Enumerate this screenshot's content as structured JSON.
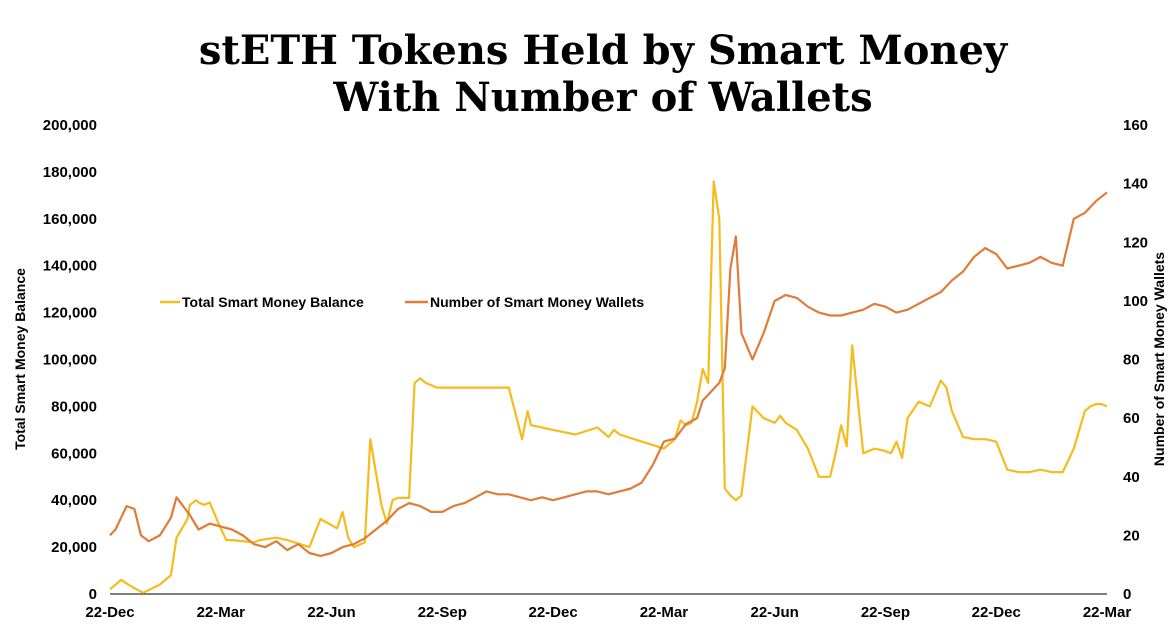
{
  "chart_data": {
    "type": "line",
    "title_line1": "stETH Tokens Held by Smart Money",
    "title_line2": "With Number of Wallets",
    "ylabel_left": "Total Smart Money Balance",
    "ylabel_right": "Number of Smart Money Wallets",
    "ylim_left": [
      0,
      200000
    ],
    "ylim_right": [
      0,
      160
    ],
    "yticks_left": [
      "0",
      "20,000",
      "40,000",
      "60,000",
      "80,000",
      "100,000",
      "120,000",
      "140,000",
      "160,000",
      "180,000",
      "200,000"
    ],
    "yticks_right": [
      "0",
      "20",
      "40",
      "60",
      "80",
      "100",
      "120",
      "140",
      "160"
    ],
    "x_dates": [
      "22-Dec",
      "22-Mar",
      "22-Jun",
      "22-Sep",
      "22-Dec",
      "22-Mar",
      "22-Jun",
      "22-Sep",
      "22-Dec",
      "22-Mar"
    ],
    "legend_position": "upper-left",
    "grid": false,
    "series": [
      {
        "name": "Total Smart Money Balance",
        "axis": "left",
        "color": "#F4BC1C",
        "x": [
          0,
          0.1,
          0.2,
          0.3,
          0.45,
          0.55,
          0.6,
          0.7,
          0.72,
          0.78,
          0.8,
          0.85,
          0.9,
          0.98,
          1.05,
          1.1,
          1.3,
          1.35,
          1.5,
          1.6,
          1.8,
          1.9,
          2.05,
          2.1,
          2.15,
          2.2,
          2.3,
          2.35,
          2.45,
          2.5,
          2.55,
          2.6,
          2.7,
          2.75,
          2.8,
          2.85,
          2.9,
          2.95,
          3.0,
          3.1,
          3.2,
          3.4,
          3.6,
          3.72,
          3.77,
          3.8,
          3.9,
          4.0,
          4.2,
          4.4,
          4.5,
          4.55,
          4.6,
          4.8,
          5.0,
          5.1,
          5.15,
          5.2,
          5.25,
          5.3,
          5.35,
          5.4,
          5.45,
          5.5,
          5.55,
          5.6,
          5.65,
          5.7,
          5.8,
          5.9,
          6.0,
          6.05,
          6.1,
          6.2,
          6.3,
          6.4,
          6.5,
          6.55,
          6.6,
          6.65,
          6.7,
          6.8,
          6.9,
          7.0,
          7.05,
          7.1,
          7.15,
          7.2,
          7.3,
          7.4,
          7.5,
          7.55,
          7.6,
          7.7,
          7.8,
          7.9,
          8.0,
          8.1,
          8.2,
          8.3,
          8.4,
          8.5,
          8.6,
          8.7,
          8.8,
          8.85,
          8.9,
          8.95,
          9.0
        ],
        "y": [
          2000,
          6000,
          3000,
          500,
          4000,
          8000,
          24000,
          32000,
          38000,
          40000,
          39000,
          38000,
          39000,
          30000,
          23000,
          23000,
          22000,
          23000,
          24000,
          23000,
          20000,
          32000,
          28000,
          35000,
          24000,
          20000,
          22000,
          66000,
          38000,
          30000,
          40000,
          41000,
          41000,
          90000,
          92000,
          90000,
          89000,
          88000,
          88000,
          88000,
          88000,
          88000,
          88000,
          66000,
          78000,
          72000,
          71000,
          70000,
          68000,
          71000,
          67000,
          70000,
          68000,
          65000,
          62000,
          66000,
          74000,
          72000,
          73000,
          82000,
          96000,
          90000,
          176000,
          160000,
          45000,
          42000,
          40000,
          42000,
          80000,
          75000,
          73000,
          76000,
          73000,
          70000,
          62000,
          50000,
          50000,
          60000,
          72000,
          63000,
          106000,
          60000,
          62000,
          61000,
          60000,
          65000,
          58000,
          75000,
          82000,
          80000,
          91000,
          88000,
          78000,
          67000,
          66000,
          66000,
          65000,
          53000,
          52000,
          52000,
          53000,
          52000,
          52000,
          62000,
          78000,
          80000,
          81000,
          81000,
          80000
        ]
      },
      {
        "name": "Number of Smart Money Wallets",
        "axis": "right",
        "color": "#E07B39",
        "x": [
          0,
          0.05,
          0.15,
          0.22,
          0.28,
          0.35,
          0.45,
          0.55,
          0.6,
          0.72,
          0.8,
          0.9,
          1.0,
          1.1,
          1.2,
          1.3,
          1.4,
          1.5,
          1.6,
          1.7,
          1.8,
          1.9,
          2.0,
          2.1,
          2.2,
          2.3,
          2.4,
          2.5,
          2.6,
          2.7,
          2.8,
          2.9,
          3.0,
          3.1,
          3.2,
          3.3,
          3.4,
          3.5,
          3.6,
          3.7,
          3.8,
          3.9,
          4.0,
          4.1,
          4.2,
          4.3,
          4.4,
          4.5,
          4.6,
          4.7,
          4.8,
          4.9,
          5.0,
          5.1,
          5.2,
          5.3,
          5.35,
          5.4,
          5.45,
          5.5,
          5.55,
          5.6,
          5.65,
          5.7,
          5.8,
          5.9,
          6.0,
          6.1,
          6.2,
          6.3,
          6.4,
          6.5,
          6.6,
          6.7,
          6.8,
          6.9,
          7.0,
          7.1,
          7.2,
          7.3,
          7.4,
          7.5,
          7.6,
          7.7,
          7.8,
          7.9,
          8.0,
          8.1,
          8.2,
          8.3,
          8.4,
          8.5,
          8.6,
          8.7,
          8.8,
          8.9,
          9.0
        ],
        "y": [
          20,
          22,
          30,
          29,
          20,
          18,
          20,
          26,
          33,
          27,
          22,
          24,
          23,
          22,
          20,
          17,
          16,
          18,
          15,
          17,
          14,
          13,
          14,
          16,
          17,
          19,
          22,
          25,
          29,
          31,
          30,
          28,
          28,
          30,
          31,
          33,
          35,
          34,
          34,
          33,
          32,
          33,
          32,
          33,
          34,
          35,
          35,
          34,
          35,
          36,
          38,
          44,
          52,
          53,
          58,
          60,
          66,
          68,
          70,
          72,
          77,
          111,
          122,
          89,
          80,
          89,
          100,
          102,
          101,
          98,
          96,
          95,
          95,
          96,
          97,
          99,
          98,
          96,
          97,
          99,
          101,
          103,
          107,
          110,
          115,
          118,
          116,
          111,
          112,
          113,
          115,
          113,
          112,
          128,
          130,
          134,
          137
        ]
      }
    ]
  }
}
